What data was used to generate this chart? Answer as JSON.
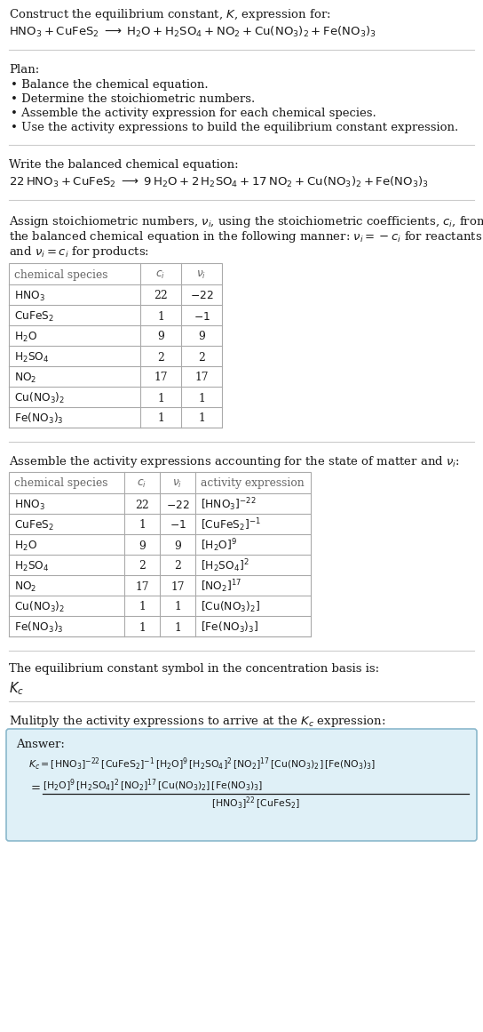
{
  "bg_color": "#ffffff",
  "text_color": "#1a1a1a",
  "gray_text": "#666666",
  "title_line1": "Construct the equilibrium constant, $K$, expression for:",
  "title_line2": "$\\mathrm{HNO_3 + CuFeS_2 \\;\\longrightarrow\\; H_2O + H_2SO_4 + NO_2 + Cu(NO_3)_2 + Fe(NO_3)_3}$",
  "plan_header": "Plan:",
  "plan_bullets": [
    "Balance the chemical equation.",
    "Determine the stoichiometric numbers.",
    "Assemble the activity expression for each chemical species.",
    "Use the activity expressions to build the equilibrium constant expression."
  ],
  "balanced_header": "Write the balanced chemical equation:",
  "balanced_eq": "$\\mathrm{22\\,HNO_3 + CuFeS_2 \\;\\longrightarrow\\; 9\\,H_2O + 2\\,H_2SO_4 + 17\\,NO_2 + Cu(NO_3)_2 + Fe(NO_3)_3}$",
  "stoich_header_lines": [
    "Assign stoichiometric numbers, $\\nu_i$, using the stoichiometric coefficients, $c_i$, from",
    "the balanced chemical equation in the following manner: $\\nu_i = -c_i$ for reactants",
    "and $\\nu_i = c_i$ for products:"
  ],
  "table1_headers": [
    "chemical species",
    "$c_i$",
    "$\\nu_i$"
  ],
  "table1_rows": [
    [
      "$\\mathrm{HNO_3}$",
      "22",
      "$-22$"
    ],
    [
      "$\\mathrm{CuFeS_2}$",
      "1",
      "$-1$"
    ],
    [
      "$\\mathrm{H_2O}$",
      "9",
      "9"
    ],
    [
      "$\\mathrm{H_2SO_4}$",
      "2",
      "2"
    ],
    [
      "$\\mathrm{NO_2}$",
      "17",
      "17"
    ],
    [
      "$\\mathrm{Cu(NO_3)_2}$",
      "1",
      "1"
    ],
    [
      "$\\mathrm{Fe(NO_3)_3}$",
      "1",
      "1"
    ]
  ],
  "activity_header": "Assemble the activity expressions accounting for the state of matter and $\\nu_i$:",
  "table2_headers": [
    "chemical species",
    "$c_i$",
    "$\\nu_i$",
    "activity expression"
  ],
  "table2_rows": [
    [
      "$\\mathrm{HNO_3}$",
      "22",
      "$-22$",
      "$[\\mathrm{HNO_3}]^{-22}$"
    ],
    [
      "$\\mathrm{CuFeS_2}$",
      "1",
      "$-1$",
      "$[\\mathrm{CuFeS_2}]^{-1}$"
    ],
    [
      "$\\mathrm{H_2O}$",
      "9",
      "9",
      "$[\\mathrm{H_2O}]^{9}$"
    ],
    [
      "$\\mathrm{H_2SO_4}$",
      "2",
      "2",
      "$[\\mathrm{H_2SO_4}]^{2}$"
    ],
    [
      "$\\mathrm{NO_2}$",
      "17",
      "17",
      "$[\\mathrm{NO_2}]^{17}$"
    ],
    [
      "$\\mathrm{Cu(NO_3)_2}$",
      "1",
      "1",
      "$[\\mathrm{Cu(NO_3)_2}]$"
    ],
    [
      "$\\mathrm{Fe(NO_3)_3}$",
      "1",
      "1",
      "$[\\mathrm{Fe(NO_3)_3}]$"
    ]
  ],
  "kc_header": "The equilibrium constant symbol in the concentration basis is:",
  "kc_symbol": "$K_c$",
  "multiply_header": "Mulitply the activity expressions to arrive at the $K_c$ expression:",
  "answer_label": "Answer:",
  "answer_line1": "$K_c = [\\mathrm{HNO_3}]^{-22}\\,[\\mathrm{CuFeS_2}]^{-1}\\,[\\mathrm{H_2O}]^{9}\\,[\\mathrm{H_2SO_4}]^{2}\\,[\\mathrm{NO_2}]^{17}\\,[\\mathrm{Cu(NO_3)_2}]\\,[\\mathrm{Fe(NO_3)_3}]$",
  "answer_line2_num": "$[\\mathrm{H_2O}]^{9}\\,[\\mathrm{H_2SO_4}]^{2}\\,[\\mathrm{NO_2}]^{17}\\,[\\mathrm{Cu(NO_3)_2}]\\,[\\mathrm{Fe(NO_3)_3}]$",
  "answer_line2_den": "$[\\mathrm{HNO_3}]^{22}\\,[\\mathrm{CuFeS_2}]$",
  "answer_box_color": "#dff0f7",
  "answer_box_border": "#8ab8cc",
  "divider_color": "#cccccc",
  "table_border_color": "#aaaaaa"
}
